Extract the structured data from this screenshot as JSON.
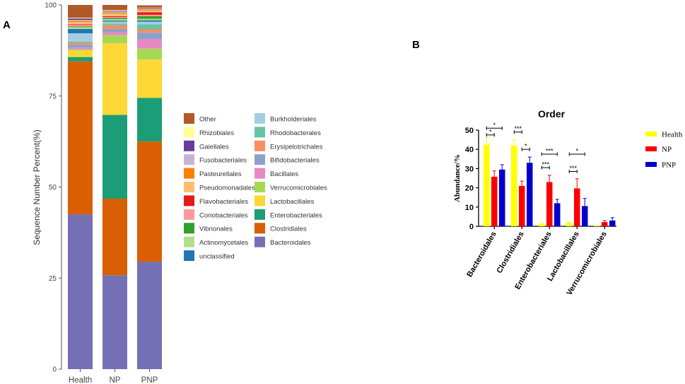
{
  "chart_data": [
    {
      "panel_label": "A",
      "type": "bar",
      "stacked": true,
      "categories": [
        "Health",
        "NP",
        "PNP"
      ],
      "ylabel": "Sequence Number Percent(%)",
      "xlabel": "",
      "ylim": [
        0,
        100
      ],
      "yticks": [
        0,
        25,
        50,
        75,
        100
      ],
      "legend_position": "right",
      "series": [
        {
          "name": "Bacteroidales",
          "color": "#7570b3",
          "values": [
            42.5,
            25.8,
            29.5
          ]
        },
        {
          "name": "Clostridiales",
          "color": "#d95f02",
          "values": [
            42.0,
            21.0,
            33.0
          ]
        },
        {
          "name": "Enterobacteriales",
          "color": "#1b9e77",
          "values": [
            1.2,
            23.0,
            12.0
          ]
        },
        {
          "name": "Lactobacillales",
          "color": "#fdd835",
          "values": [
            1.8,
            19.7,
            10.5
          ]
        },
        {
          "name": "Verrucomicrobiales",
          "color": "#a6d854",
          "values": [
            0.3,
            2.2,
            3.0
          ]
        },
        {
          "name": "Bacillales",
          "color": "#e78ac3",
          "values": [
            0.5,
            0.8,
            2.6
          ]
        },
        {
          "name": "Bifidobacteriales",
          "color": "#8da0cb",
          "values": [
            0.8,
            0.9,
            1.8
          ]
        },
        {
          "name": "Erysipelotrichales",
          "color": "#fc8d62",
          "values": [
            0.5,
            1.0,
            0.9
          ]
        },
        {
          "name": "Rhodobacterales",
          "color": "#66c2a5",
          "values": [
            0.3,
            0.5,
            1.4
          ]
        },
        {
          "name": "Burkholderiales",
          "color": "#a6cee3",
          "values": [
            2.3,
            0.5,
            0.7
          ]
        },
        {
          "name": "unclassified",
          "color": "#1f78b4",
          "values": [
            1.2,
            0.3,
            0.4
          ]
        },
        {
          "name": "Actinomycetales",
          "color": "#b2df8a",
          "values": [
            0.5,
            0.4,
            0.4
          ]
        },
        {
          "name": "Vibrionales",
          "color": "#33a02c",
          "values": [
            0.2,
            0.3,
            0.7
          ]
        },
        {
          "name": "Coriobacteriales",
          "color": "#fb9a99",
          "values": [
            0.4,
            0.3,
            0.4
          ]
        },
        {
          "name": "Flavobacteriales",
          "color": "#e31a1c",
          "values": [
            0.2,
            0.2,
            0.7
          ]
        },
        {
          "name": "Pseudomonadales",
          "color": "#fdbf6f",
          "values": [
            0.6,
            0.7,
            0.5
          ]
        },
        {
          "name": "Pasteurellales",
          "color": "#ff7f00",
          "values": [
            0.3,
            0.3,
            0.3
          ]
        },
        {
          "name": "Fusobacteriales",
          "color": "#cab2d6",
          "values": [
            0.3,
            0.3,
            0.2
          ]
        },
        {
          "name": "Gaiellales",
          "color": "#6a3d9a",
          "values": [
            0.4,
            0.2,
            0.2
          ]
        },
        {
          "name": "Rhizobiales",
          "color": "#ffff99",
          "values": [
            0.2,
            0.2,
            0.1
          ]
        },
        {
          "name": "Other",
          "color": "#b15928",
          "values": [
            3.5,
            1.4,
            0.6
          ]
        }
      ],
      "legend_columns": [
        [
          "Other",
          "Rhizobiales",
          "Gaiellales",
          "Fusobacteriales",
          "Pasteurellales",
          "Pseudomonadales",
          "Flavobacteriales",
          "Coriobacteriales",
          "Vibrionales",
          "Actinomycetales",
          "unclassified"
        ],
        [
          "Burkholderiales",
          "Rhodobacterales",
          "Erysipelotrichales",
          "Bifidobacteriales",
          "Bacillales",
          "Verrucomicrobiales",
          "Lactobacillales",
          "Enterobacteriales",
          "Clostridiales",
          "Bacteroidales"
        ]
      ]
    },
    {
      "panel_label": "B",
      "type": "bar",
      "title": "Order",
      "categories": [
        "Bacteroidales",
        "Clostridiales",
        "Enterobacteriales",
        "Lactobacillales",
        "Verrucomicrobiales"
      ],
      "ylabel": "Abundance/%",
      "xlabel": "",
      "ylim": [
        0,
        50
      ],
      "yticks": [
        0,
        10,
        20,
        30,
        40,
        50
      ],
      "legend_position": "right",
      "series": [
        {
          "name": "Health",
          "color": "#ffff00",
          "values": [
            42.5,
            42.0,
            1.2,
            1.8,
            0.3
          ],
          "errors": [
            3.5,
            3.0,
            0.3,
            0.4,
            0.1
          ]
        },
        {
          "name": "NP",
          "color": "#ff0000",
          "values": [
            25.8,
            21.0,
            23.0,
            19.7,
            2.2
          ],
          "errors": [
            3.0,
            2.5,
            3.5,
            5.0,
            0.8
          ]
        },
        {
          "name": "PNP",
          "color": "#0000cc",
          "values": [
            29.5,
            33.0,
            12.0,
            10.5,
            3.0
          ],
          "errors": [
            2.5,
            3.0,
            2.0,
            4.0,
            1.5
          ]
        }
      ],
      "annotations": [
        {
          "category": "Bacteroidales",
          "from": "Health",
          "to": "PNP",
          "label": "*",
          "y": 51
        },
        {
          "category": "Bacteroidales",
          "from": "Health",
          "to": "NP",
          "label": "*",
          "y": 47.5
        },
        {
          "category": "Clostridiales",
          "from": "Health",
          "to": "NP",
          "label": "***",
          "y": 49
        },
        {
          "category": "Clostridiales",
          "from": "NP",
          "to": "PNP",
          "label": "*",
          "y": 40
        },
        {
          "category": "Enterobacteriales",
          "from": "Health",
          "to": "PNP",
          "label": "***",
          "y": 37.5
        },
        {
          "category": "Enterobacteriales",
          "from": "Health",
          "to": "NP",
          "label": "***",
          "y": 30.5
        },
        {
          "category": "Lactobacillales",
          "from": "Health",
          "to": "PNP",
          "label": "*",
          "y": 37.5
        },
        {
          "category": "Lactobacillales",
          "from": "Health",
          "to": "NP",
          "label": "***",
          "y": 28.5
        }
      ]
    }
  ]
}
